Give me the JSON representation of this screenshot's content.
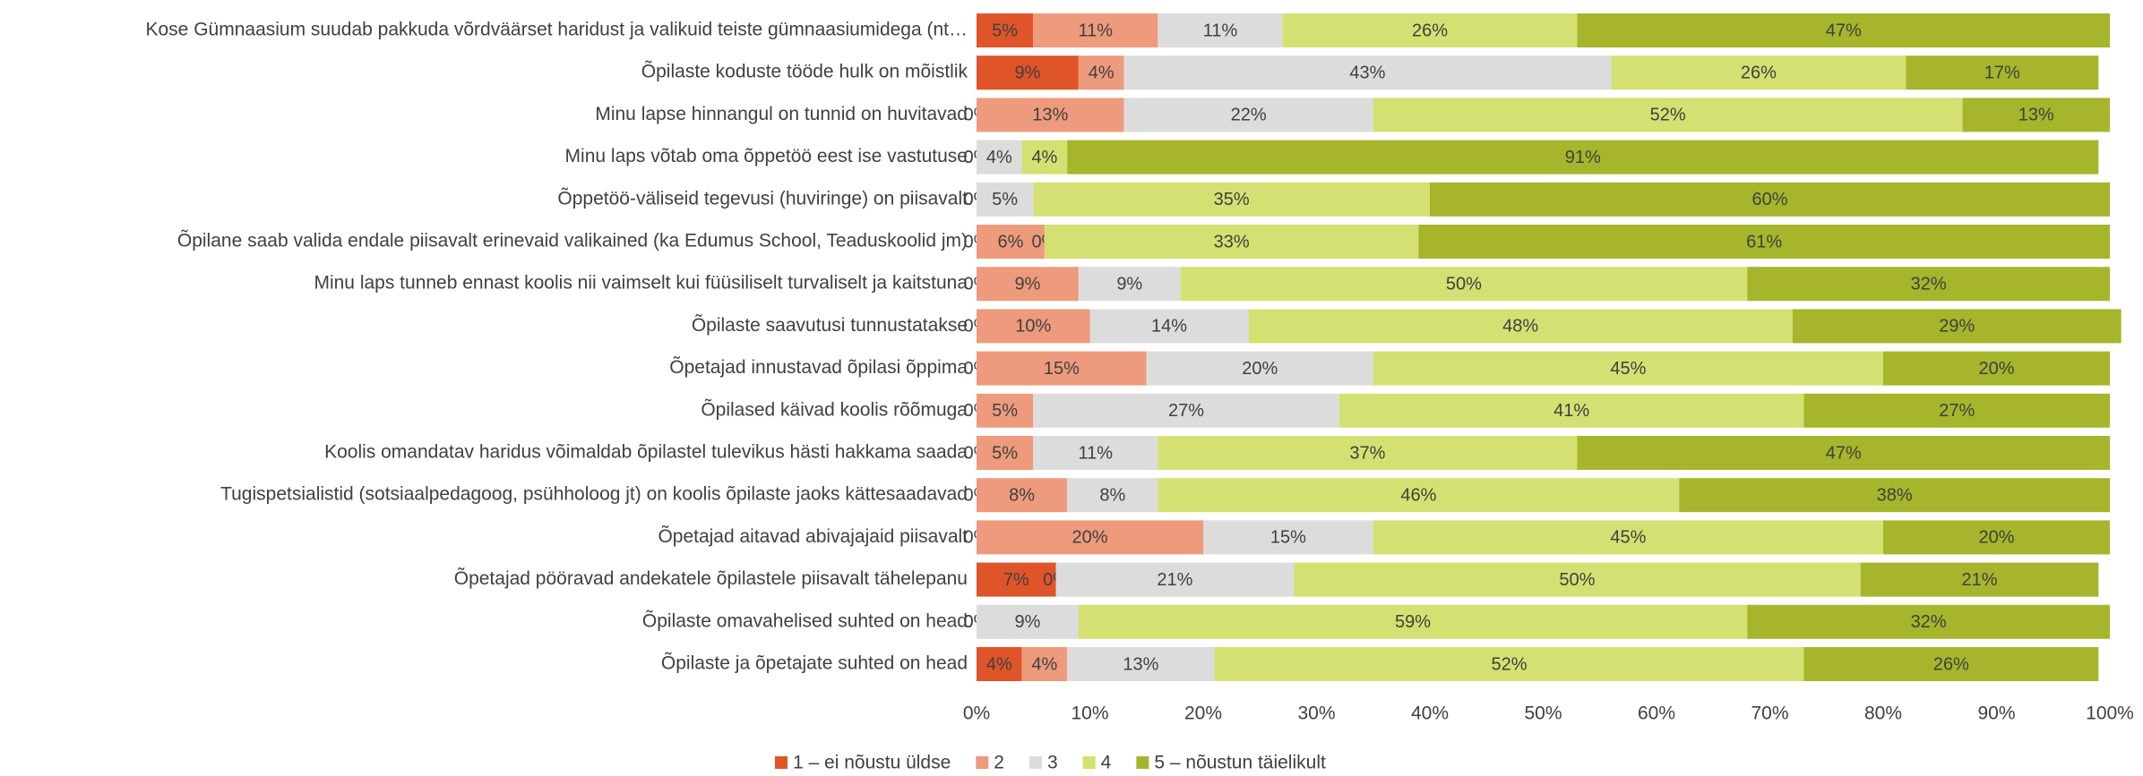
{
  "chart_data": {
    "type": "stacked_bar_horizontal",
    "categories": [
      "Kose Gümnaasium suudab pakkuda võrdväärset haridust ja valikuid teiste gümnaasiumidega (nt…",
      "Õpilaste koduste tööde hulk on mõistlik",
      "Minu lapse hinnangul on tunnid on huvitavad",
      "Minu laps võtab oma õppetöö eest ise vastutuse",
      "Õppetöö-väliseid tegevusi (huviringe) on piisavalt",
      "Õpilane saab valida endale piisavalt erinevaid valikained (ka Edumus School, Teaduskoolid jm)",
      "Minu laps tunneb ennast  koolis nii vaimselt kui füüsiliselt turvaliselt ja kaitstuna",
      "Õpilaste saavutusi tunnustatakse",
      "Õpetajad innustavad õpilasi õppima",
      "Õpilased käivad koolis rõõmuga",
      "Koolis omandatav haridus võimaldab õpilastel tulevikus hästi hakkama saada",
      "Tugispetsialistid (sotsiaalpedagoog, psühholoog jt) on koolis õpilaste jaoks kättesaadavad",
      "Õpetajad aitavad abivajajaid piisavalt",
      "Õpetajad pööravad andekatele õpilastele piisavalt tähelepanu",
      "Õpilaste omavahelised suhted on head",
      "Õpilaste ja õpetajate suhted on head"
    ],
    "series": [
      {
        "name": "1 – ei nõustu üldse",
        "color": "#e0542a",
        "values": [
          5,
          9,
          0,
          0,
          0,
          0,
          0,
          0,
          0,
          0,
          0,
          0,
          0,
          7,
          0,
          4
        ],
        "value_labels": [
          "5%",
          "9%",
          "0%",
          "0%",
          "0%",
          "0%",
          "0%",
          "0%",
          "0%",
          "0%",
          "0%",
          "0%",
          "0%",
          "7%",
          "0%",
          "4%"
        ]
      },
      {
        "name": "2",
        "color": "#ed9b7c",
        "values": [
          11,
          4,
          13,
          0,
          0,
          6,
          9,
          10,
          15,
          5,
          5,
          8,
          20,
          0,
          0,
          4
        ],
        "value_labels": [
          "11%",
          "4%",
          "13%",
          "0%",
          "0%",
          "6%",
          "9%",
          "10%",
          "15%",
          "5%",
          "5%",
          "8%",
          "20%",
          "0%",
          "0%",
          "4%"
        ]
      },
      {
        "name": "3",
        "color": "#dcdcdc",
        "values": [
          11,
          43,
          22,
          4,
          5,
          0,
          9,
          14,
          20,
          27,
          11,
          8,
          15,
          21,
          9,
          13
        ],
        "value_labels": [
          "11%",
          "43%",
          "22%",
          "4%",
          "5%",
          "0%",
          "9%",
          "14%",
          "20%",
          "27%",
          "11%",
          "8%",
          "15%",
          "21%",
          "9%",
          "13%"
        ]
      },
      {
        "name": "4",
        "color": "#d4e072",
        "values": [
          26,
          26,
          52,
          4,
          35,
          33,
          50,
          48,
          45,
          41,
          37,
          46,
          45,
          50,
          59,
          52
        ],
        "value_labels": [
          "26%",
          "26%",
          "52%",
          "4%",
          "35%",
          "33%",
          "50%",
          "48%",
          "45%",
          "41%",
          "37%",
          "46%",
          "45%",
          "50%",
          "59%",
          "52%"
        ]
      },
      {
        "name": "5 – nõustun täielikult",
        "color": "#a6b52b",
        "values": [
          47,
          17,
          13,
          91,
          60,
          61,
          32,
          29,
          20,
          27,
          47,
          38,
          20,
          21,
          32,
          26
        ],
        "value_labels": [
          "47%",
          "17%",
          "13%",
          "91%",
          "60%",
          "61%",
          "32%",
          "29%",
          "20%",
          "27%",
          "47%",
          "38%",
          "20%",
          "21%",
          "32%",
          "26%"
        ]
      }
    ],
    "xlim": [
      0,
      100
    ],
    "xticks": [
      {
        "value": 0,
        "label": "0%"
      },
      {
        "value": 10,
        "label": "10%"
      },
      {
        "value": 20,
        "label": "20%"
      },
      {
        "value": 30,
        "label": "30%"
      },
      {
        "value": 40,
        "label": "40%"
      },
      {
        "value": 50,
        "label": "50%"
      },
      {
        "value": 60,
        "label": "60%"
      },
      {
        "value": 70,
        "label": "70%"
      },
      {
        "value": 80,
        "label": "80%"
      },
      {
        "value": 90,
        "label": "90%"
      },
      {
        "value": 100,
        "label": "100%"
      }
    ],
    "legend": "bottom"
  }
}
